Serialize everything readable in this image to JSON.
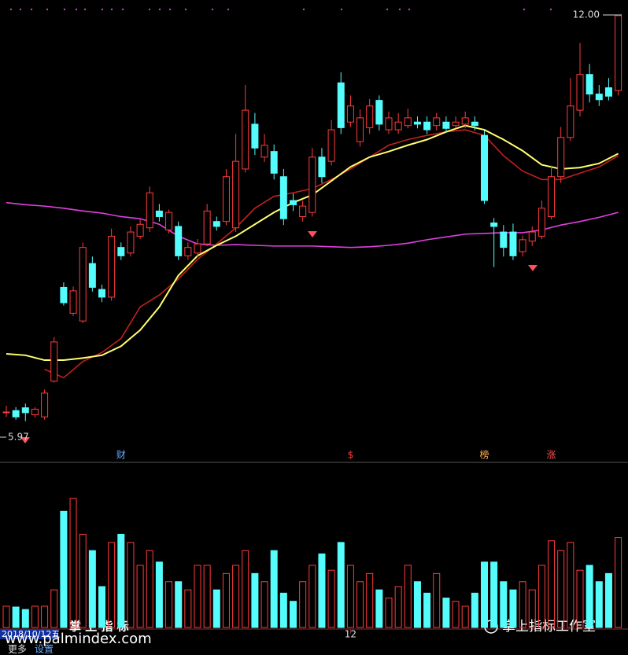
{
  "chart_data": {
    "type": "candlestick",
    "candles": [
      [
        6.32,
        6.42,
        6.26,
        6.33
      ],
      [
        6.35,
        6.4,
        6.22,
        6.26
      ],
      [
        6.39,
        6.45,
        6.2,
        6.32
      ],
      [
        6.29,
        6.4,
        6.25,
        6.37
      ],
      [
        6.26,
        6.65,
        6.22,
        6.6
      ],
      [
        6.77,
        7.4,
        6.75,
        7.33
      ],
      [
        8.11,
        8.18,
        7.85,
        7.89
      ],
      [
        7.74,
        8.12,
        7.7,
        8.06
      ],
      [
        7.63,
        8.75,
        7.6,
        8.68
      ],
      [
        8.45,
        8.55,
        8.05,
        8.11
      ],
      [
        8.08,
        8.15,
        7.9,
        7.97
      ],
      [
        7.97,
        8.95,
        7.92,
        8.84
      ],
      [
        8.68,
        8.75,
        8.5,
        8.56
      ],
      [
        8.6,
        8.98,
        8.55,
        8.9
      ],
      [
        8.84,
        9.08,
        8.8,
        9.01
      ],
      [
        8.96,
        9.55,
        8.9,
        9.46
      ],
      [
        9.2,
        9.3,
        9.05,
        9.12
      ],
      [
        8.93,
        9.22,
        8.88,
        9.18
      ],
      [
        8.98,
        9.05,
        8.5,
        8.56
      ],
      [
        8.56,
        8.75,
        8.5,
        8.68
      ],
      [
        8.6,
        8.8,
        8.55,
        8.73
      ],
      [
        8.73,
        9.3,
        8.7,
        9.2
      ],
      [
        9.05,
        9.12,
        8.92,
        8.98
      ],
      [
        9.05,
        9.8,
        9.0,
        9.69
      ],
      [
        8.96,
        10.3,
        8.9,
        9.91
      ],
      [
        9.8,
        11.0,
        9.75,
        10.64
      ],
      [
        10.44,
        10.6,
        10.0,
        10.1
      ],
      [
        9.97,
        10.3,
        9.9,
        10.14
      ],
      [
        10.05,
        10.15,
        9.65,
        9.74
      ],
      [
        9.69,
        9.8,
        9.0,
        9.09
      ],
      [
        9.35,
        9.45,
        9.2,
        9.29
      ],
      [
        9.12,
        9.35,
        9.05,
        9.27
      ],
      [
        9.18,
        10.1,
        9.12,
        9.97
      ],
      [
        9.97,
        10.1,
        9.6,
        9.69
      ],
      [
        9.91,
        10.5,
        9.85,
        10.36
      ],
      [
        11.03,
        11.18,
        10.3,
        10.39
      ],
      [
        10.47,
        10.85,
        10.4,
        10.7
      ],
      [
        10.19,
        10.65,
        10.12,
        10.53
      ],
      [
        10.39,
        10.8,
        10.3,
        10.7
      ],
      [
        10.78,
        10.85,
        10.35,
        10.44
      ],
      [
        10.36,
        10.62,
        10.3,
        10.53
      ],
      [
        10.36,
        10.6,
        10.3,
        10.47
      ],
      [
        10.42,
        10.66,
        10.38,
        10.53
      ],
      [
        10.47,
        10.55,
        10.38,
        10.44
      ],
      [
        10.47,
        10.55,
        10.3,
        10.36
      ],
      [
        10.42,
        10.6,
        10.35,
        10.53
      ],
      [
        10.47,
        10.55,
        10.32,
        10.38
      ],
      [
        10.42,
        10.55,
        10.38,
        10.47
      ],
      [
        10.44,
        10.62,
        10.38,
        10.53
      ],
      [
        10.47,
        10.55,
        10.35,
        10.42
      ],
      [
        10.28,
        10.35,
        9.3,
        9.35
      ],
      [
        9.03,
        9.1,
        8.4,
        8.98
      ],
      [
        8.9,
        9.0,
        8.55,
        8.68
      ],
      [
        8.9,
        9.02,
        8.5,
        8.56
      ],
      [
        8.62,
        8.85,
        8.55,
        8.79
      ],
      [
        8.77,
        8.98,
        8.7,
        8.9
      ],
      [
        8.84,
        9.35,
        8.8,
        9.24
      ],
      [
        9.12,
        9.85,
        9.08,
        9.69
      ],
      [
        9.69,
        10.4,
        9.6,
        10.25
      ],
      [
        10.25,
        11.1,
        10.2,
        10.7
      ],
      [
        10.64,
        11.6,
        10.55,
        11.15
      ],
      [
        11.15,
        11.3,
        10.75,
        10.87
      ],
      [
        10.87,
        11.0,
        10.7,
        10.79
      ],
      [
        10.96,
        11.1,
        10.78,
        10.84
      ],
      [
        10.92,
        12.0,
        10.85,
        11.99
      ]
    ],
    "up_color": "#ff3c3c",
    "down_color": "#54fcfc",
    "ylim": [
      5.97,
      12
    ],
    "yticks": [
      5.97,
      {
        "value": 12,
        "label": "12.00"
      }
    ],
    "ma_x": [
      0,
      2,
      4,
      6,
      8,
      10,
      12,
      14,
      16,
      18,
      20,
      22,
      24,
      26,
      28,
      30,
      32,
      34,
      36,
      38,
      40,
      42,
      44,
      46,
      48,
      50,
      52,
      54,
      56,
      58,
      60,
      62,
      64
    ],
    "moving_averages": [
      {
        "color": "#e040e0",
        "values": [
          9.32,
          9.29,
          9.27,
          9.24,
          9.2,
          9.17,
          9.12,
          9.09,
          9.01,
          8.84,
          8.73,
          8.71,
          8.72,
          8.71,
          8.7,
          8.7,
          8.7,
          8.69,
          8.68,
          8.69,
          8.71,
          8.74,
          8.79,
          8.83,
          8.87,
          8.88,
          8.89,
          8.89,
          8.93,
          9.0,
          9.05,
          9.11,
          9.18
        ]
      },
      {
        "color": "#c02020",
        "values": [
          null,
          null,
          6.94,
          6.82,
          7.05,
          7.18,
          7.38,
          7.83,
          8.0,
          8.23,
          8.51,
          8.73,
          8.96,
          9.24,
          9.41,
          9.46,
          9.52,
          9.65,
          9.8,
          9.97,
          10.14,
          10.22,
          10.28,
          10.33,
          10.36,
          10.28,
          9.99,
          9.77,
          9.65,
          9.65,
          9.74,
          9.83,
          9.99
        ]
      },
      {
        "color": "#ffff70",
        "values": [
          7.16,
          7.14,
          7.07,
          7.07,
          7.1,
          7.14,
          7.27,
          7.5,
          7.83,
          8.28,
          8.56,
          8.71,
          8.84,
          9.01,
          9.18,
          9.32,
          9.43,
          9.63,
          9.83,
          9.97,
          10.05,
          10.14,
          10.22,
          10.33,
          10.42,
          10.36,
          10.22,
          10.06,
          9.86,
          9.8,
          9.82,
          9.88,
          10.02
        ]
      }
    ],
    "signals": [
      {
        "index": 12,
        "label": "财",
        "color": "#6aa8ff"
      },
      {
        "index": 36,
        "label": "$",
        "color": "#ff3c3c"
      },
      {
        "index": 50,
        "label": "榜",
        "color": "#ffb050"
      },
      {
        "index": 57,
        "label": "涨",
        "color": "#ff5050"
      }
    ],
    "volume": {
      "values": [
        13,
        12.5,
        11,
        13,
        13,
        23,
        71,
        79,
        57,
        47,
        25,
        52,
        57,
        52,
        38,
        47,
        40,
        28,
        28,
        23,
        38,
        38,
        23,
        33,
        38,
        47,
        33,
        28,
        47,
        21,
        16,
        28,
        38,
        45,
        35,
        52,
        38,
        28,
        33,
        23,
        18,
        25,
        38,
        28,
        21,
        33,
        18,
        16,
        13,
        21,
        40,
        40,
        28,
        23,
        28,
        23,
        38,
        53,
        47,
        52,
        35,
        38,
        28,
        33,
        55
      ],
      "ylim": [
        0,
        100
      ]
    },
    "xticks": [
      {
        "value": 36,
        "label": "12"
      }
    ],
    "cursor_date": "2018/10/12五"
  },
  "toolbar": {
    "buttons": [
      "更多",
      "设置"
    ]
  },
  "watermark": {
    "title": "掌 上 指 标",
    "url": "www.palmindex.com",
    "brand": "掌上指标工作室"
  }
}
